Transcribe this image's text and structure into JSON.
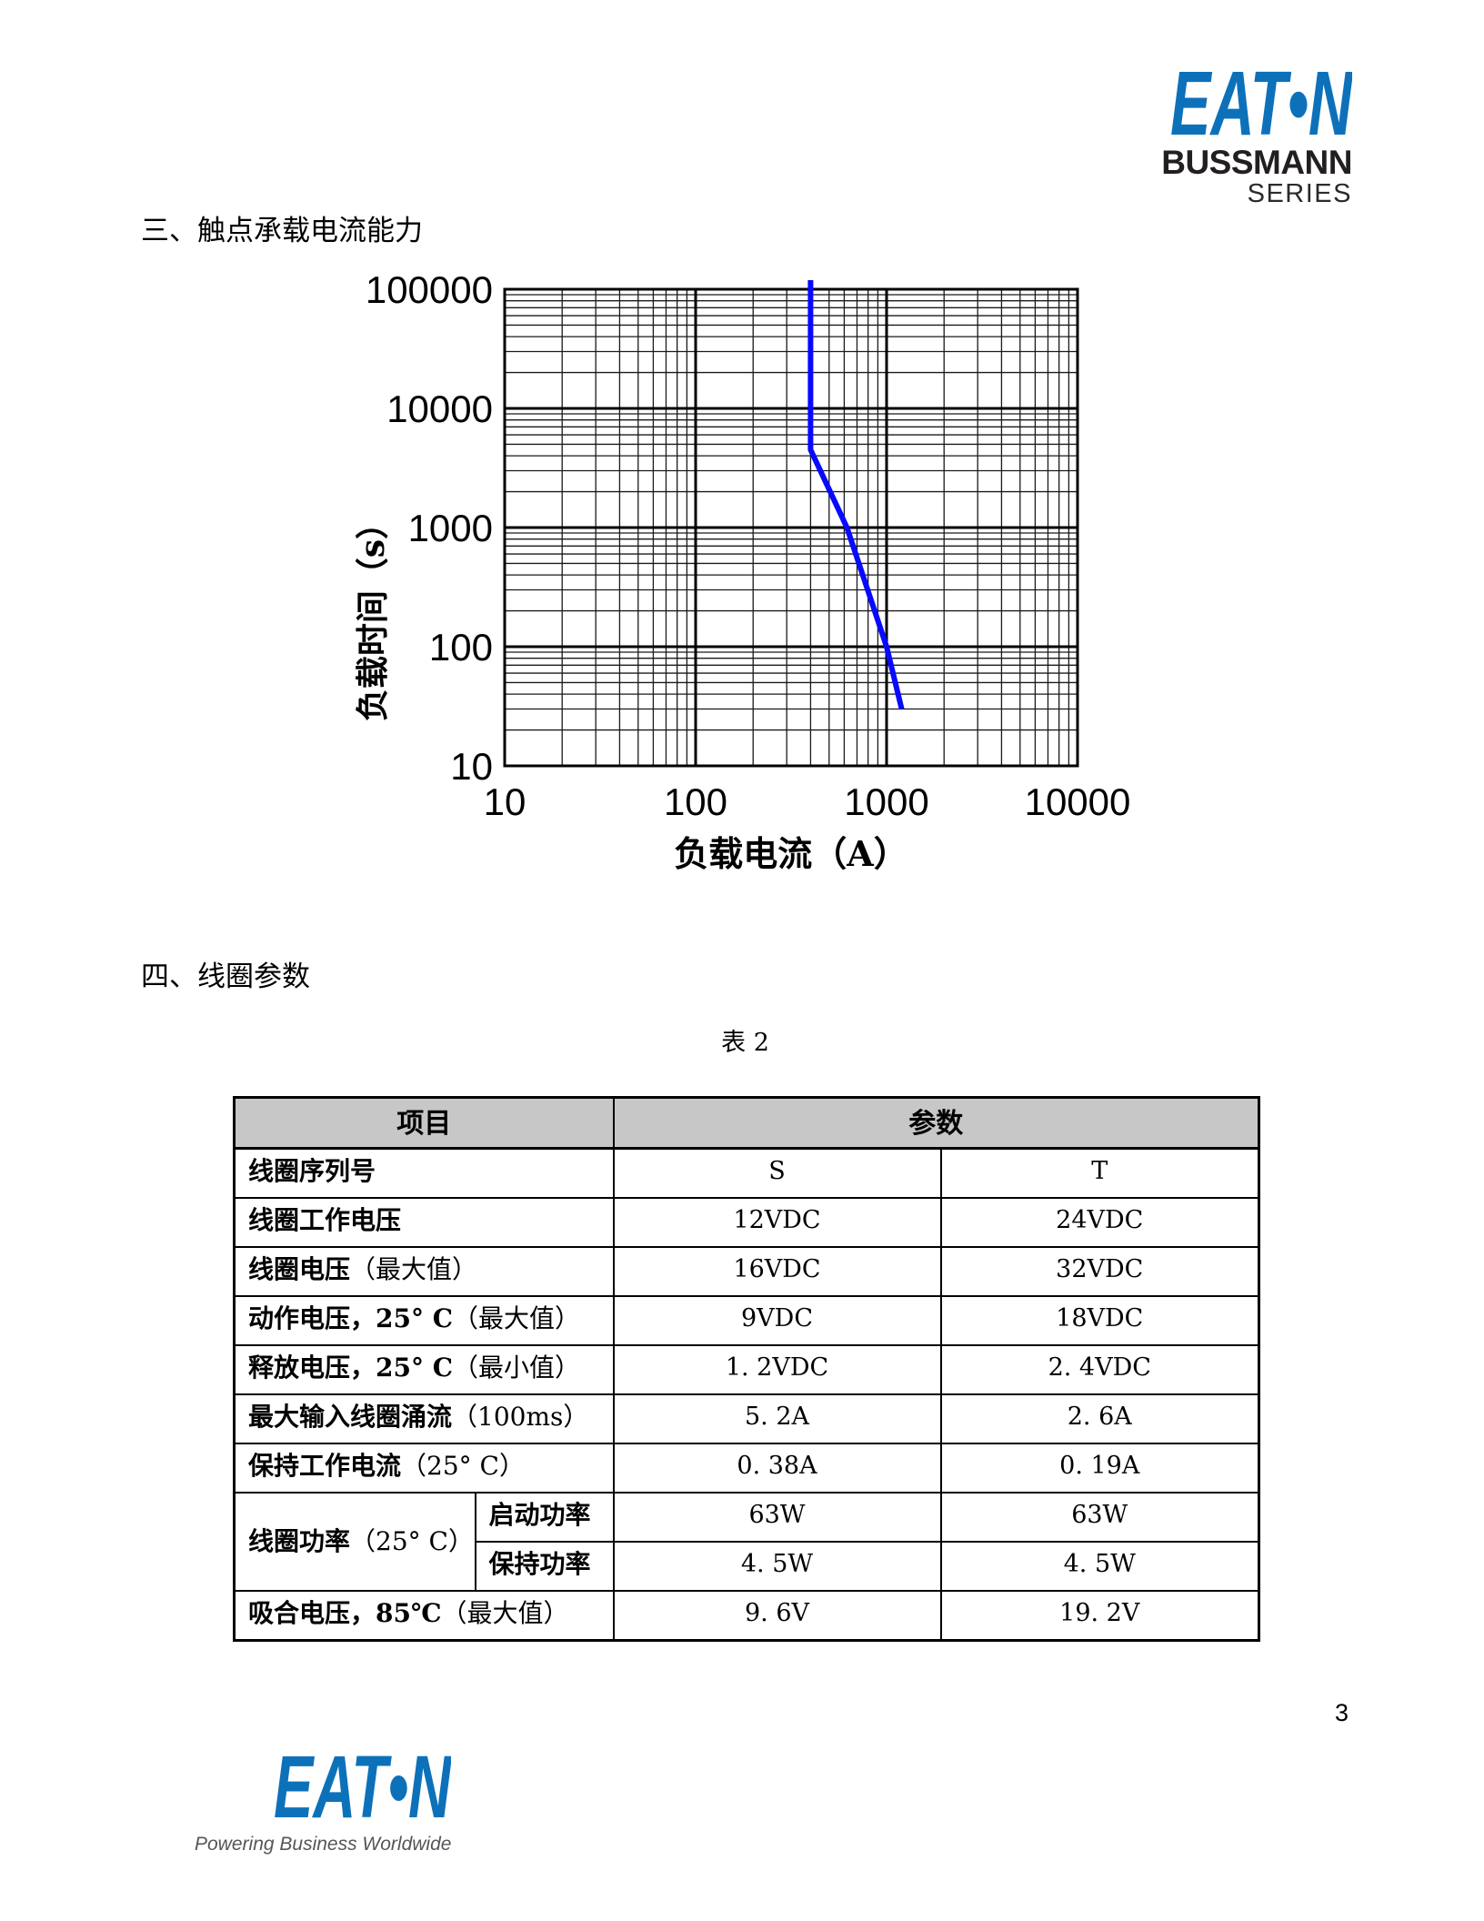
{
  "page": {
    "number": "3"
  },
  "brand": {
    "eaton_display": "EAT•N",
    "bussmann": "BUSSMANN",
    "series": "SERIES",
    "tagline": "Powering Business Worldwide",
    "blue": "#0d71ba",
    "dark": "#231f20",
    "gray": "#55565a"
  },
  "sections": {
    "three": "三、触点承载电流能力",
    "four": "四、线圈参数"
  },
  "table_caption": "表 2",
  "chart_data": {
    "type": "line",
    "title": "",
    "xlabel": "负载电流（A）",
    "ylabel": "负载时间（s）",
    "x_scale": "log",
    "y_scale": "log",
    "xlim": [
      10,
      10000
    ],
    "ylim": [
      10,
      100000
    ],
    "x_ticks": [
      "10",
      "100",
      "1000",
      "10000"
    ],
    "y_ticks": [
      "100000",
      "10000",
      "1000",
      "100",
      "10"
    ],
    "grid": "full log-log grid with minor lines, thick decade lines",
    "series": [
      {
        "name": "contact-current-carrying-capacity",
        "color": "#0909ff",
        "points": [
          [
            400,
            100000
          ],
          [
            400,
            4500
          ],
          [
            620,
            1000
          ],
          [
            1000,
            100
          ],
          [
            1200,
            30
          ]
        ]
      }
    ]
  },
  "coil_table": {
    "header": {
      "item": "项目",
      "param": "参数"
    },
    "rows": [
      {
        "label": "线圈序列号",
        "note": "",
        "s": "S",
        "t": "T"
      },
      {
        "label": "线圈工作电压",
        "note": "",
        "s": "12VDC",
        "t": "24VDC"
      },
      {
        "label": "线圈电压",
        "note": "（最大值）",
        "s": "16VDC",
        "t": "32VDC"
      },
      {
        "label": "动作电压，25° C",
        "note": "（最大值）",
        "s": "9VDC",
        "t": "18VDC"
      },
      {
        "label": "释放电压，25° C",
        "note": "（最小值）",
        "s": "1. 2VDC",
        "t": "2. 4VDC"
      },
      {
        "label": "最大输入线圈涌流",
        "note": "（100ms）",
        "s": "5. 2A",
        "t": "2. 6A"
      },
      {
        "label": "保持工作电流",
        "note": "（25° C）",
        "s": "0. 38A",
        "t": "0. 19A"
      },
      {
        "group": {
          "label": "线圈功率",
          "note": "（25° C）"
        },
        "subrows": [
          {
            "sub": "启动功率",
            "s": "63W",
            "t": "63W"
          },
          {
            "sub": "保持功率",
            "s": "4. 5W",
            "t": "4. 5W"
          }
        ]
      },
      {
        "label": "吸合电压，85℃",
        "note": "（最大值）",
        "s": "9. 6V",
        "t": "19. 2V"
      }
    ]
  }
}
